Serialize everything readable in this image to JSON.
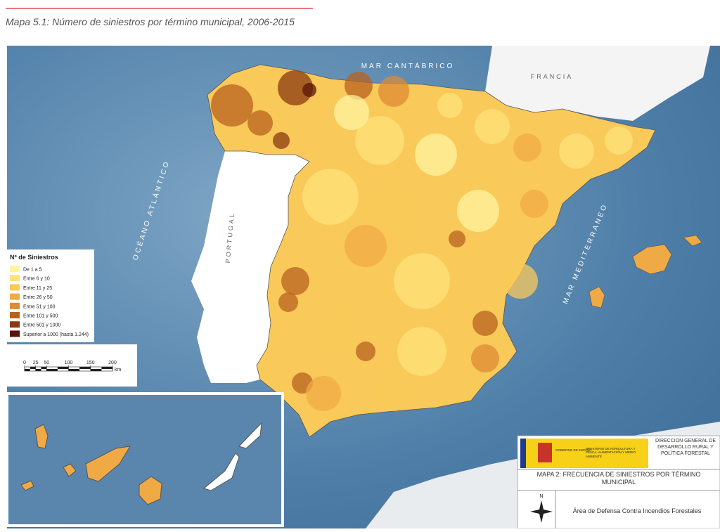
{
  "header": {
    "title": "Mapa 5.1: Número de siniestros por término municipal, 2006-2015"
  },
  "map": {
    "labels": {
      "cantabrico": "MAR CANTÁBRICO",
      "francia": "FRANCIA",
      "atlantico": "OCÉANO ATLÁNTICO",
      "portugal": "PORTUGAL",
      "mediterraneo": "MAR MEDITERRANEO"
    },
    "legend": {
      "title": "Nº de Siniestros",
      "items": [
        {
          "label": "De 1 a 5",
          "color": "#fff3a0"
        },
        {
          "label": "Entre 6 y 10",
          "color": "#fde27a"
        },
        {
          "label": "Entre 11 y 25",
          "color": "#f9c95a"
        },
        {
          "label": "Entre 26 y 50",
          "color": "#f0aa45"
        },
        {
          "label": "Entre 51 y 100",
          "color": "#dd8a35"
        },
        {
          "label": "Entre 101 y 500",
          "color": "#b8621f"
        },
        {
          "label": "Entre 501 y 1000",
          "color": "#8b3a10"
        },
        {
          "label": "Superior a 1000 (hasta 1.244)",
          "color": "#5a1505"
        }
      ]
    },
    "scale": {
      "ticks": [
        0,
        25,
        50,
        100,
        150,
        200
      ],
      "unit": "km"
    }
  },
  "footer": {
    "gobierno": "GOBIERNO DE ESPAÑA",
    "ministerio": "MINISTERIO DE AGRICULTURA Y PESCA, ALIMENTACIÓN Y MEDIO AMBIENTE",
    "direccion": "DIRECCIÓN GENERAL DE DESARROLLO RURAL Y POLÍTICA FORESTAL",
    "map_title": "MAPA 2: FRECUENCIA DE SINIESTROS POR TÉRMINO MUNICIPAL",
    "area": "Área de Defensa Contra Incendios Forestales",
    "north": "N"
  }
}
